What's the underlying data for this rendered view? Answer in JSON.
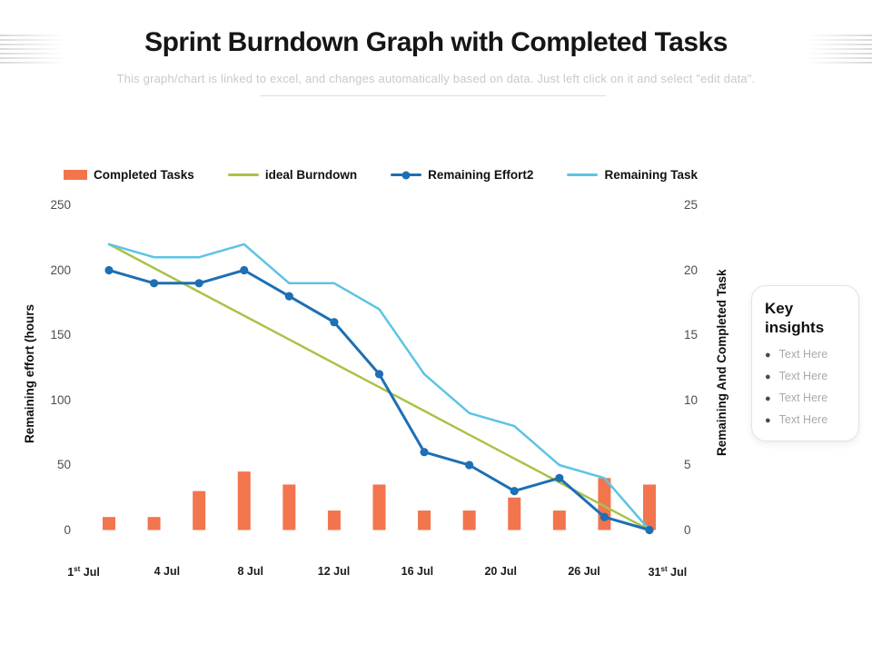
{
  "page": {
    "title": "Sprint Burndown Graph with Completed Tasks",
    "subtitle": "This graph/chart is linked to excel, and changes automatically based on data. Just left click on it and select \"edit data\"."
  },
  "legend": {
    "items": [
      {
        "label": "Completed Tasks",
        "swatch": "bar",
        "color": "#F2754E"
      },
      {
        "label": "ideal Burndown",
        "swatch": "line",
        "color": "#A9C34A"
      },
      {
        "label": "Remaining Effort2",
        "swatch": "line-marker",
        "color": "#1E6FB3"
      },
      {
        "label": "Remaining Task",
        "swatch": "line",
        "color": "#5CC4E4"
      }
    ]
  },
  "chart_data": {
    "type": "combo",
    "n_points": 13,
    "left_axis": {
      "label": "Remaining effort (hours",
      "ticks": [
        "250",
        "200",
        "150",
        "100",
        "50",
        "0"
      ],
      "range": [
        0,
        250
      ]
    },
    "right_axis": {
      "label": "Remaining And Completed Task",
      "ticks": [
        "25",
        "20",
        "15",
        "10",
        "5",
        "0"
      ],
      "range": [
        0,
        25
      ]
    },
    "x_tick_labels": [
      {
        "num": "1",
        "sup": "st",
        "tail": " Jul"
      },
      {
        "num": "4",
        "sup": "",
        "tail": " Jul"
      },
      {
        "num": "8",
        "sup": "",
        "tail": " Jul"
      },
      {
        "num": "12",
        "sup": "",
        "tail": " Jul"
      },
      {
        "num": "16",
        "sup": "",
        "tail": " Jul"
      },
      {
        "num": "20",
        "sup": "",
        "tail": " Jul"
      },
      {
        "num": "26",
        "sup": "",
        "tail": " Jul"
      },
      {
        "num": "31",
        "sup": "st",
        "tail": " Jul"
      }
    ],
    "series": [
      {
        "name": "Completed Tasks",
        "type": "bar",
        "axis": "right",
        "color": "#F2754E",
        "values": [
          1,
          1,
          3,
          4.5,
          3.5,
          1.5,
          3.5,
          1.5,
          1.5,
          2.5,
          1.5,
          4,
          3.5
        ]
      },
      {
        "name": "ideal Burndown",
        "type": "line",
        "axis": "left",
        "color": "#A9C34A",
        "values": [
          220,
          201.7,
          183.3,
          165,
          146.7,
          128.3,
          110,
          91.7,
          73.3,
          55,
          36.7,
          18.3,
          0
        ]
      },
      {
        "name": "Remaining Task",
        "type": "line",
        "axis": "right",
        "color": "#5CC4E4",
        "values": [
          22,
          21,
          21,
          22,
          19,
          19,
          17,
          12,
          9,
          8,
          5,
          4,
          0
        ]
      },
      {
        "name": "Remaining Effort2",
        "type": "line-marker",
        "axis": "left",
        "color": "#1E6FB3",
        "values": [
          200,
          190,
          190,
          200,
          180,
          160,
          120,
          60,
          50,
          30,
          40,
          10,
          0
        ]
      }
    ],
    "legend_position": "top",
    "grid": false
  },
  "key_insights": {
    "title": "Key insights",
    "bullets": [
      "Text Here",
      "Text Here",
      "Text Here",
      "Text Here"
    ]
  }
}
